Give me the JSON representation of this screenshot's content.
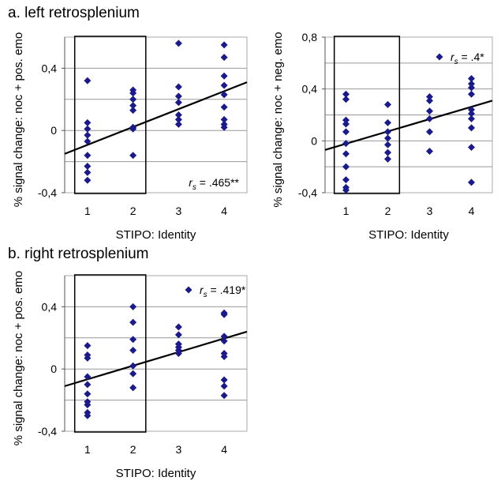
{
  "panels": {
    "a_title": "a. left retrosplenium",
    "b_title": "b. right retrosplenium"
  },
  "chart_data": [
    {
      "id": "left-pos",
      "type": "scatter",
      "xlabel": "STIPO: Identity",
      "ylabel": "% signal change: noc + pos. emo",
      "xticks": [
        "1",
        "2",
        "3",
        "4"
      ],
      "yticks": [
        "-0,4",
        "0",
        "0,4"
      ],
      "ylim": [
        -0.4,
        0.6
      ],
      "grid": "horizontal",
      "marker_color": "#1a1a8c",
      "annotation": {
        "r_label": "r",
        "r_sub": "s",
        "r_value": " = .465**"
      },
      "highlight_box": "x 1–2",
      "points": [
        {
          "x": 1,
          "y": 0.32
        },
        {
          "x": 1,
          "y": 0.05
        },
        {
          "x": 1,
          "y": 0.01
        },
        {
          "x": 1,
          "y": -0.03
        },
        {
          "x": 1,
          "y": -0.07
        },
        {
          "x": 1,
          "y": -0.16
        },
        {
          "x": 1,
          "y": -0.23
        },
        {
          "x": 1,
          "y": -0.27
        },
        {
          "x": 1,
          "y": -0.32
        },
        {
          "x": 2,
          "y": 0.26
        },
        {
          "x": 2,
          "y": 0.24
        },
        {
          "x": 2,
          "y": 0.2
        },
        {
          "x": 2,
          "y": 0.16
        },
        {
          "x": 2,
          "y": 0.13
        },
        {
          "x": 2,
          "y": 0.02
        },
        {
          "x": 2,
          "y": 0.01
        },
        {
          "x": 2,
          "y": -0.16
        },
        {
          "x": 3,
          "y": 0.56
        },
        {
          "x": 3,
          "y": 0.28
        },
        {
          "x": 3,
          "y": 0.22
        },
        {
          "x": 3,
          "y": 0.18
        },
        {
          "x": 3,
          "y": 0.1
        },
        {
          "x": 3,
          "y": 0.07
        },
        {
          "x": 3,
          "y": 0.04
        },
        {
          "x": 4,
          "y": 0.55
        },
        {
          "x": 4,
          "y": 0.47
        },
        {
          "x": 4,
          "y": 0.35
        },
        {
          "x": 4,
          "y": 0.29
        },
        {
          "x": 4,
          "y": 0.23
        },
        {
          "x": 4,
          "y": 0.15
        },
        {
          "x": 4,
          "y": 0.07
        },
        {
          "x": 4,
          "y": 0.04
        },
        {
          "x": 4,
          "y": 0.02
        }
      ],
      "trendline": {
        "x": [
          0.5,
          4.5
        ],
        "y": [
          -0.15,
          0.31
        ]
      }
    },
    {
      "id": "left-neg",
      "type": "scatter",
      "xlabel": "STIPO: Identity",
      "ylabel": "% signal change: noc + neg. emo",
      "xticks": [
        "1",
        "2",
        "3",
        "4"
      ],
      "yticks": [
        "-0,4",
        "0",
        "0,4",
        "0,8"
      ],
      "ylim": [
        -0.4,
        0.8
      ],
      "grid": "horizontal",
      "marker_color": "#1a1a8c",
      "annotation": {
        "r_label": "r",
        "r_sub": "s",
        "r_value": " = .4*"
      },
      "highlight_box": "x 1–2",
      "points": [
        {
          "x": 1,
          "y": 0.36
        },
        {
          "x": 1,
          "y": 0.32
        },
        {
          "x": 1,
          "y": 0.16
        },
        {
          "x": 1,
          "y": 0.13
        },
        {
          "x": 1,
          "y": 0.07
        },
        {
          "x": 1,
          "y": -0.02
        },
        {
          "x": 1,
          "y": -0.1
        },
        {
          "x": 1,
          "y": -0.2
        },
        {
          "x": 1,
          "y": -0.3
        },
        {
          "x": 1,
          "y": -0.36
        },
        {
          "x": 1,
          "y": -0.38
        },
        {
          "x": 2,
          "y": 0.28
        },
        {
          "x": 2,
          "y": 0.14
        },
        {
          "x": 2,
          "y": 0.07
        },
        {
          "x": 2,
          "y": 0.02
        },
        {
          "x": 2,
          "y": -0.03
        },
        {
          "x": 2,
          "y": -0.09
        },
        {
          "x": 2,
          "y": -0.14
        },
        {
          "x": 3,
          "y": 0.34
        },
        {
          "x": 3,
          "y": 0.31
        },
        {
          "x": 3,
          "y": 0.23
        },
        {
          "x": 3,
          "y": 0.17
        },
        {
          "x": 3,
          "y": 0.07
        },
        {
          "x": 3,
          "y": -0.08
        },
        {
          "x": 4,
          "y": 0.48
        },
        {
          "x": 4,
          "y": 0.44
        },
        {
          "x": 4,
          "y": 0.41
        },
        {
          "x": 4,
          "y": 0.36
        },
        {
          "x": 4,
          "y": 0.24
        },
        {
          "x": 4,
          "y": 0.21
        },
        {
          "x": 4,
          "y": 0.17
        },
        {
          "x": 4,
          "y": 0.1
        },
        {
          "x": 4,
          "y": -0.05
        },
        {
          "x": 4,
          "y": -0.32
        }
      ],
      "trendline": {
        "x": [
          0.5,
          4.5
        ],
        "y": [
          -0.07,
          0.31
        ]
      }
    },
    {
      "id": "right-pos",
      "type": "scatter",
      "xlabel": "STIPO: Identity",
      "ylabel": "% signal change: noc + pos. emo",
      "xticks": [
        "1",
        "2",
        "3",
        "4"
      ],
      "yticks": [
        "-0,4",
        "0",
        "0,4"
      ],
      "ylim": [
        -0.4,
        0.6
      ],
      "grid": "horizontal",
      "marker_color": "#1a1a8c",
      "annotation": {
        "r_label": "r",
        "r_sub": "s",
        "r_value": " = .419*"
      },
      "highlight_box": "x 1–2",
      "points": [
        {
          "x": 1,
          "y": 0.15
        },
        {
          "x": 1,
          "y": 0.09
        },
        {
          "x": 1,
          "y": 0.07
        },
        {
          "x": 1,
          "y": -0.05
        },
        {
          "x": 1,
          "y": -0.1
        },
        {
          "x": 1,
          "y": -0.16
        },
        {
          "x": 1,
          "y": -0.21
        },
        {
          "x": 1,
          "y": -0.23
        },
        {
          "x": 1,
          "y": -0.28
        },
        {
          "x": 1,
          "y": -0.3
        },
        {
          "x": 2,
          "y": 0.4
        },
        {
          "x": 2,
          "y": 0.3
        },
        {
          "x": 2,
          "y": 0.19
        },
        {
          "x": 2,
          "y": 0.12
        },
        {
          "x": 2,
          "y": 0.02
        },
        {
          "x": 2,
          "y": -0.03
        },
        {
          "x": 2,
          "y": -0.12
        },
        {
          "x": 3,
          "y": 0.27
        },
        {
          "x": 3,
          "y": 0.22
        },
        {
          "x": 3,
          "y": 0.16
        },
        {
          "x": 3,
          "y": 0.14
        },
        {
          "x": 3,
          "y": 0.12
        },
        {
          "x": 3,
          "y": 0.1
        },
        {
          "x": 4,
          "y": 0.36
        },
        {
          "x": 4,
          "y": 0.35
        },
        {
          "x": 4,
          "y": 0.21
        },
        {
          "x": 4,
          "y": 0.18
        },
        {
          "x": 4,
          "y": 0.1
        },
        {
          "x": 4,
          "y": 0.08
        },
        {
          "x": 4,
          "y": -0.07
        },
        {
          "x": 4,
          "y": -0.11
        },
        {
          "x": 4,
          "y": -0.17
        }
      ],
      "trendline": {
        "x": [
          0.5,
          4.5
        ],
        "y": [
          -0.11,
          0.24
        ]
      }
    }
  ]
}
